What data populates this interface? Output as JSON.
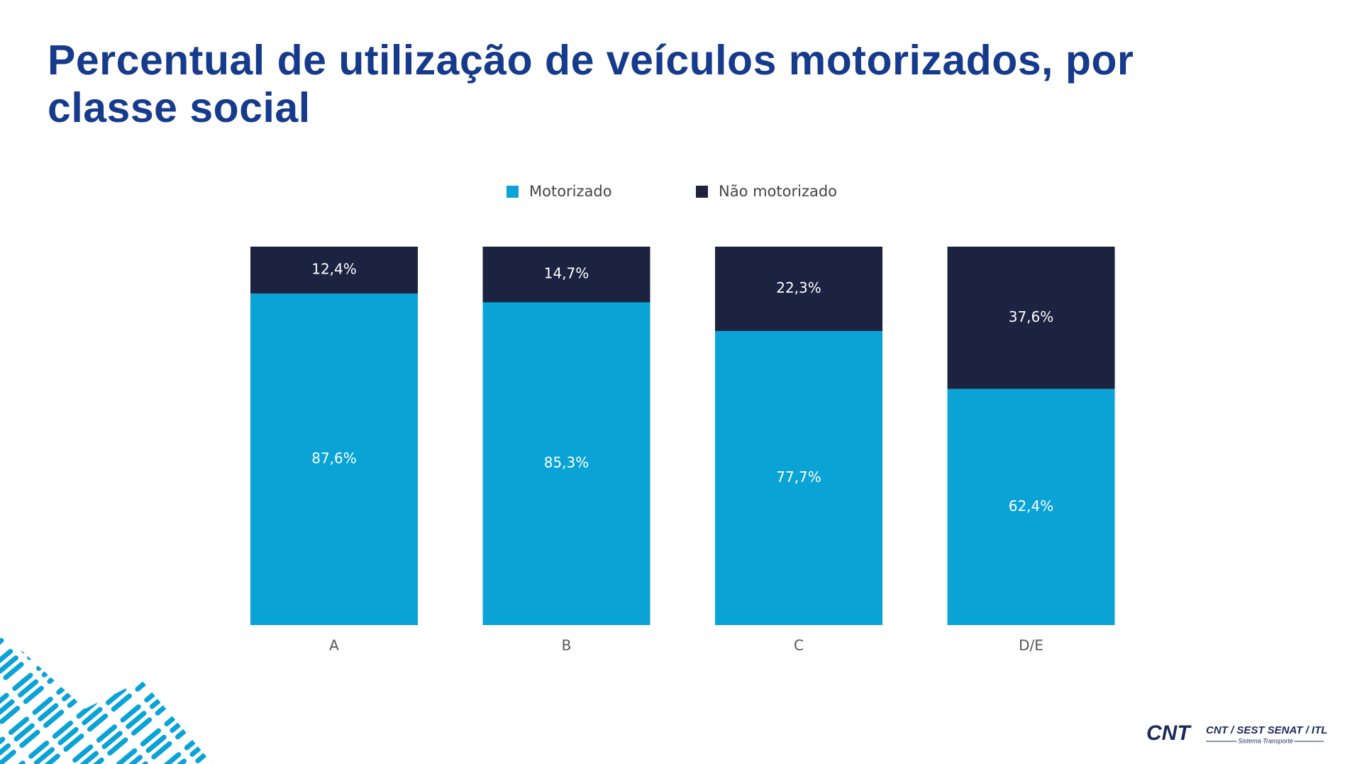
{
  "chart_data": {
    "type": "stacked_bar",
    "title": "Percentual de utilização de veículos motorizados, por classe social",
    "categories": [
      "A",
      "B",
      "C",
      "D/E"
    ],
    "series": [
      {
        "name": "Motorizado",
        "color": "#0aa3d6",
        "values": [
          87.6,
          85.3,
          77.7,
          62.4
        ],
        "value_labels": [
          "87,6%",
          "85,3%",
          "77,7%",
          "62,4%"
        ]
      },
      {
        "name": "Não motorizado",
        "color": "#1c2340",
        "values": [
          12.4,
          14.7,
          22.3,
          37.6
        ],
        "value_labels": [
          "12,4%",
          "14,7%",
          "22,3%",
          "37,6%"
        ]
      }
    ]
  },
  "footer": {
    "logo": "CNT",
    "brand": "CNT / SEST SENAT / ITL",
    "tagline": "Sistema Transporte"
  }
}
